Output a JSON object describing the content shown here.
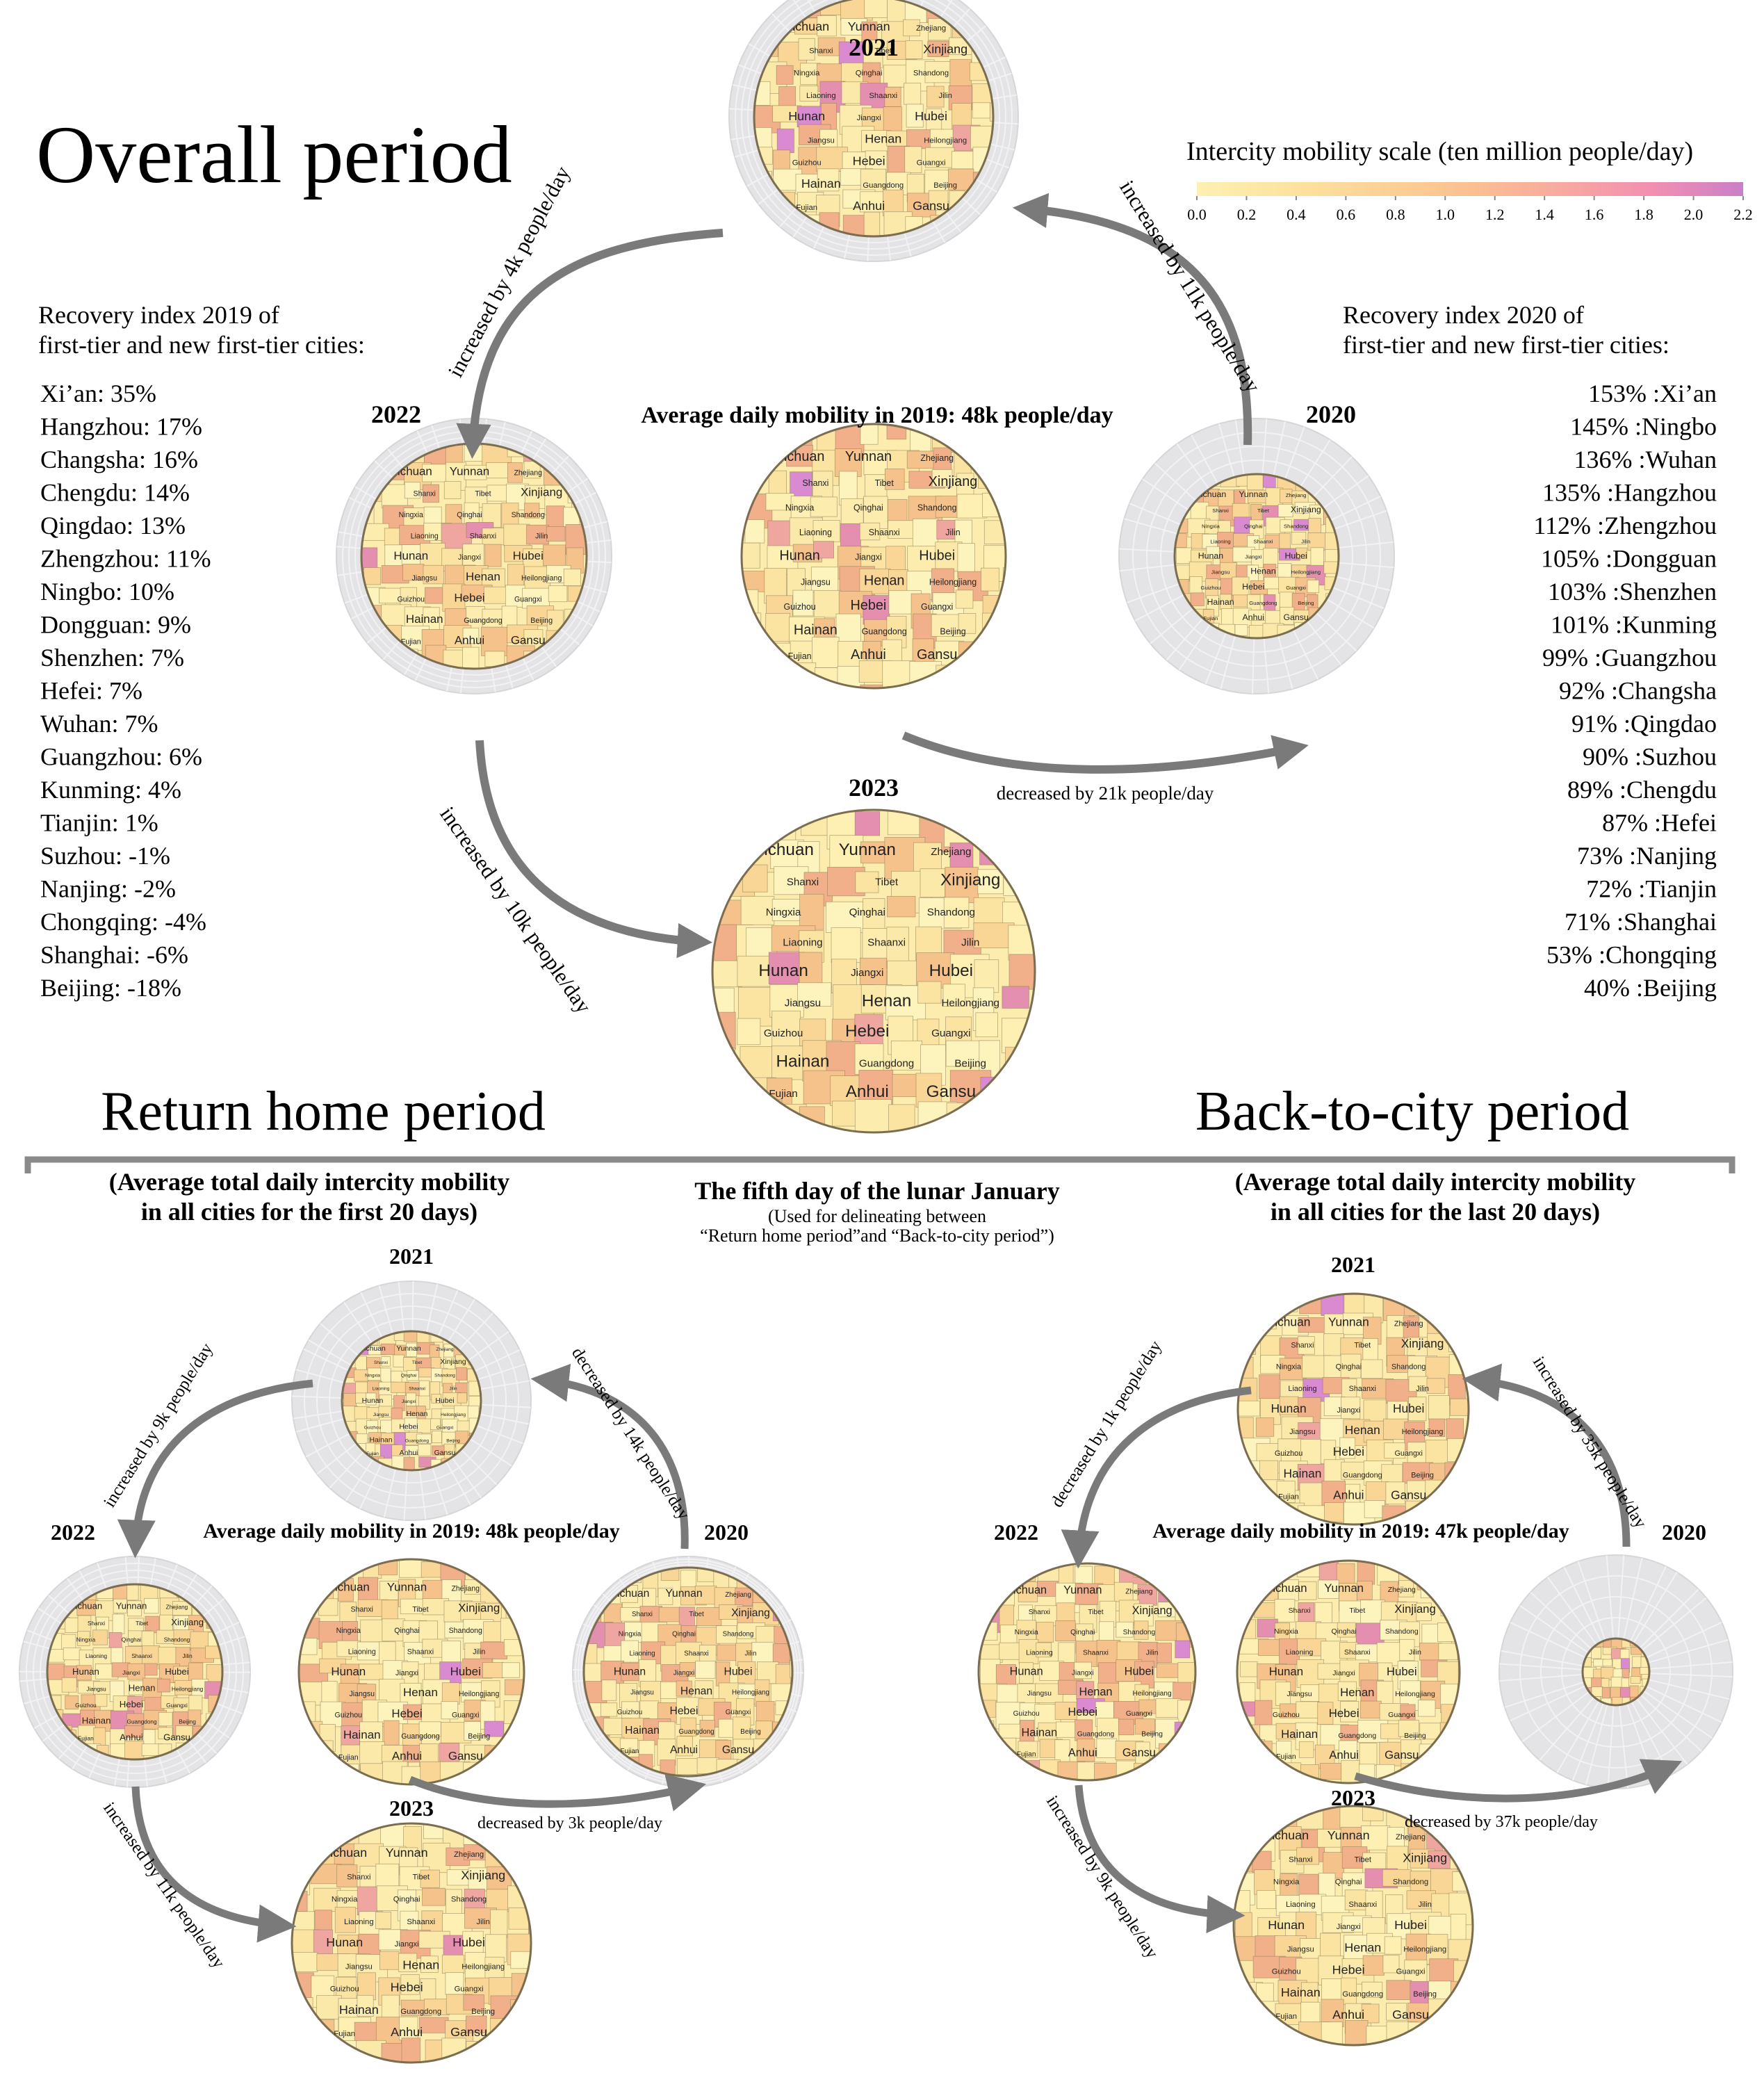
{
  "overall": {
    "title": "Overall period",
    "center_label": "Average daily mobility in 2019: 48k people/day",
    "years": {
      "y2021": "2021",
      "y2022": "2022",
      "y2020": "2020",
      "y2023": "2023"
    },
    "arrows": {
      "a2021_2022": "increased by 4k people/day",
      "a2020_2021": "increased by 11k people/day",
      "a2019_2020": "decreased by 21k people/day",
      "a2022_2023": "increased by 10k people/day"
    }
  },
  "legend": {
    "title": "Intercity mobility scale (ten million people/day)",
    "ticks": [
      "0.0",
      "0.2",
      "0.4",
      "0.6",
      "0.8",
      "1.0",
      "1.2",
      "1.4",
      "1.6",
      "1.8",
      "2.0",
      "2.2"
    ],
    "colors": [
      "#fdf0b2",
      "#fde3a0",
      "#fcd296",
      "#fbc090",
      "#f8a9a0",
      "#f28fb2",
      "#c97fc8"
    ]
  },
  "recovery_2019": {
    "title_line1": "Recovery index 2019 of",
    "title_line2": "first-tier and new first-tier cities:",
    "items": [
      "Xi’an: 35%",
      "Hangzhou: 17%",
      "Changsha: 16%",
      "Chengdu: 14%",
      "Qingdao: 13%",
      "Zhengzhou: 11%",
      "Ningbo: 10%",
      "Dongguan: 9%",
      "Shenzhen: 7%",
      "Hefei: 7%",
      "Wuhan: 7%",
      "Guangzhou: 6%",
      "Kunming: 4%",
      "Tianjin: 1%",
      "Suzhou: -1%",
      "Nanjing: -2%",
      "Chongqing: -4%",
      "Shanghai: -6%",
      "Beijing: -18%"
    ]
  },
  "recovery_2020": {
    "title_line1": "Recovery index 2020 of",
    "title_line2": "first-tier and new first-tier cities:",
    "items": [
      "153% :Xi’an",
      "145% :Ningbo",
      "136% :Wuhan",
      "135% :Hangzhou",
      "112% :Zhengzhou",
      "105% :Dongguan",
      "103% :Shenzhen",
      "101% :Kunming",
      "99% :Guangzhou",
      "92% :Changsha",
      "91% :Qingdao",
      "90% :Suzhou",
      "89% :Chengdu",
      "87% :Hefei",
      "73% :Nanjing",
      "72% :Tianjin",
      "71% :Shanghai",
      "53% :Chongqing",
      "40% :Beijing"
    ]
  },
  "return_home": {
    "title": "Return home period",
    "subtitle_line1": "(Average total daily intercity mobility",
    "subtitle_line2": "in  all cities for the first 20 days)",
    "center_label": "Average daily mobility in 2019: 48k people/day",
    "years": {
      "y2021": "2021",
      "y2022": "2022",
      "y2020": "2020",
      "y2023": "2023"
    },
    "arrows": {
      "a2021_2022": "increased by 9k people/day",
      "a2020_2021": "decreased by 14k people/day",
      "a2019_2020": "decreased by 3k people/day",
      "a2022_2023": "increased by 11k people/day"
    }
  },
  "back_to_city": {
    "title": "Back-to-city period",
    "subtitle_line1": "(Average total daily intercity mobility",
    "subtitle_line2": "in all cities for the last 20 days)",
    "center_label": "Average daily mobility in 2019: 47k people/day",
    "years": {
      "y2021": "2021",
      "y2022": "2022",
      "y2020": "2020",
      "y2023": "2023"
    },
    "arrows": {
      "a2021_2022": "decreased by 1k people/day",
      "a2020_2021": "increased by 35k people/day",
      "a2019_2020": "decreased by 37k people/day",
      "a2022_2023": "increased by 9k people/day"
    }
  },
  "lunar": {
    "title": "The fifth day of the lunar January",
    "note_line1": "(Used for delineating between",
    "note_line2": "“Return home period”and “Back-to-city period”)"
  },
  "provinces": [
    "Sichuan",
    "Yunnan",
    "Zhejiang",
    "Shanxi",
    "Tibet",
    "Xinjiang",
    "Ningxia",
    "Qinghai",
    "Shandong",
    "Liaoning",
    "Shaanxi",
    "Jilin",
    "Hunan",
    "Jiangxi",
    "Hubei",
    "Jiangsu",
    "Henan",
    "Heilongjiang",
    "Guizhou",
    "Hebei",
    "Guangxi",
    "Hainan",
    "Guangdong",
    "Beijing",
    "Fujian",
    "Anhui",
    "Gansu"
  ]
}
